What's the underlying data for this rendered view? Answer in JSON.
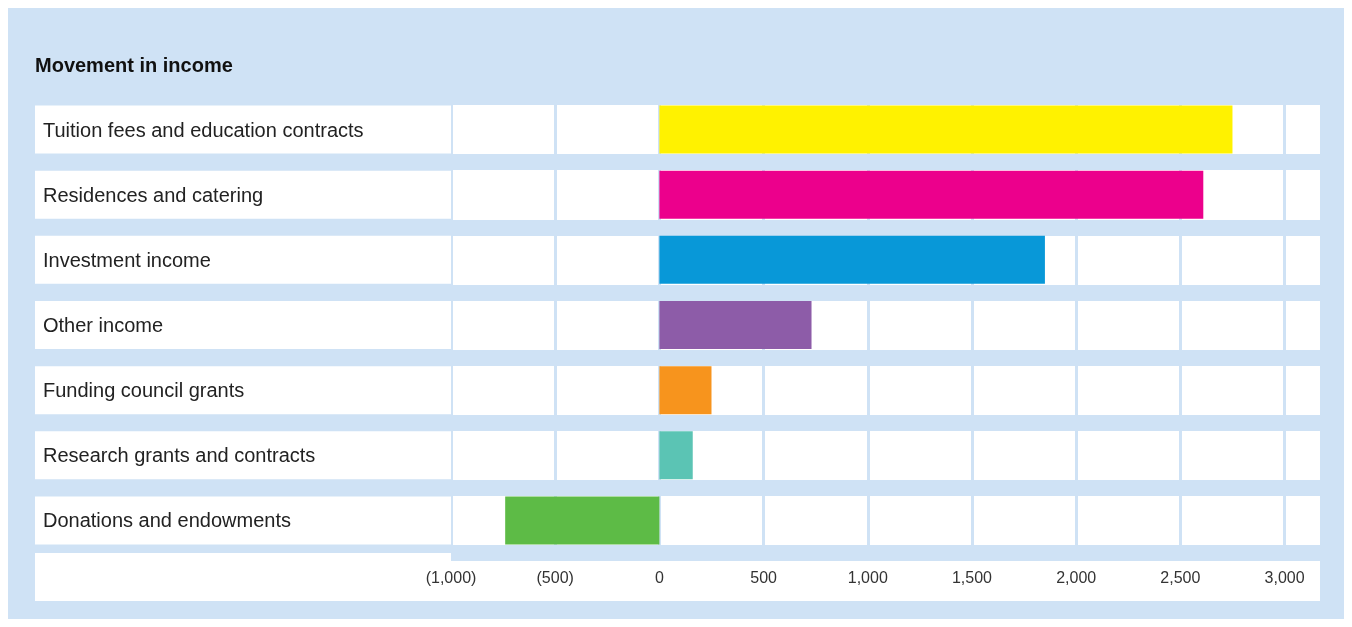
{
  "chart_data": {
    "type": "bar",
    "orientation": "horizontal",
    "title": "Movement in income",
    "categories": [
      "Tuition fees and education contracts",
      "Residences and catering",
      "Investment income",
      "Other income",
      "Funding council grants",
      "Research grants and contracts",
      "Donations and endowments"
    ],
    "values": [
      2750,
      2610,
      1850,
      730,
      250,
      160,
      -740
    ],
    "colors": [
      "#fff200",
      "#ec008c",
      "#0898d8",
      "#8d5ca8",
      "#f7941d",
      "#5bc4b4",
      "#5dbb46"
    ],
    "xlim": [
      -1000,
      3170
    ],
    "xticks": [
      {
        "value": -1000,
        "label": "(1,000)"
      },
      {
        "value": -500,
        "label": "(500)"
      },
      0,
      500,
      {
        "value": 1000,
        "label": "1,000"
      },
      {
        "value": 1500,
        "label": "1,500"
      },
      {
        "value": 2000,
        "label": "2,000"
      },
      {
        "value": 2500,
        "label": "2,500"
      },
      {
        "value": 3000,
        "label": "3,000"
      }
    ],
    "grid": "x"
  }
}
